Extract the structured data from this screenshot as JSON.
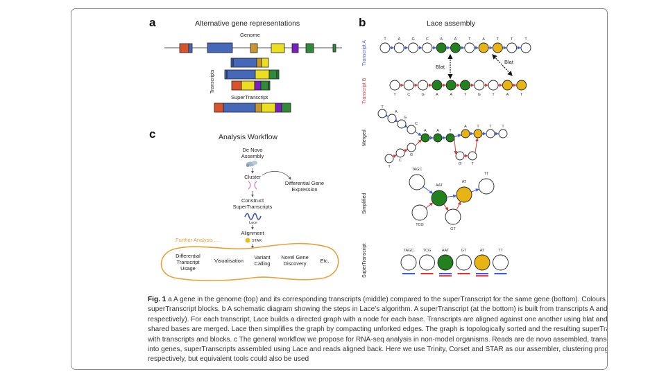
{
  "panels": {
    "a": {
      "letter": "a",
      "title": "Alternative gene representations",
      "genome_label": "Genome",
      "transcripts_label": "Transcripts",
      "supertranscript_label": "SuperTranscript"
    },
    "b": {
      "letter": "b",
      "title": "Lace assembly",
      "transcript_a_label": "Transcript A",
      "transcript_b_label": "Transcript B",
      "transcript_a_bases": [
        "T",
        "A",
        "G",
        "C",
        "A",
        "A",
        "T",
        "A",
        "T",
        "T",
        "T"
      ],
      "transcript_b_bases": [
        "T",
        "C",
        "G",
        "A",
        "A",
        "T",
        "G",
        "T",
        "A",
        "T"
      ],
      "blat_label": "Blat",
      "merged_label": "Merged",
      "merged_bases_top": [
        "T",
        "A",
        "G",
        "C",
        "A",
        "A",
        "T",
        "A",
        "T",
        "T",
        "T"
      ],
      "merged_bases_bottom": [
        "T",
        "C",
        "G",
        "G",
        "T"
      ],
      "simplified_label": "Simplified",
      "simplified_nodes": [
        "TAGC",
        "AAT",
        "AT",
        "TT",
        "TCG",
        "GT"
      ],
      "supertranscript_label": "SuperTranscript",
      "supertranscript_nodes": [
        "TAGC",
        "TCG",
        "AAT",
        "GT",
        "AT",
        "TT"
      ]
    },
    "c": {
      "letter": "c",
      "title": "Analysis Workflow",
      "step_denovo": "De Novo Assembly",
      "step_cluster": "Cluster",
      "step_dge": "Differential Gene Expression",
      "step_construct": "Construct SuperTranscripts",
      "lace_logo": "Lace",
      "step_alignment": "Alignment",
      "star_logo": "STAR",
      "further_label": "Further Analysis ....",
      "further_items": [
        "Differential Transcript Usage",
        "Visualisation",
        "Variant Calling",
        "Novel Gene Discovery",
        "Etc."
      ]
    }
  },
  "colors": {
    "orange_red": "#d9532b",
    "blue": "#4668b8",
    "tan": "#c9962e",
    "yellow": "#ecde21",
    "purple": "#7a1fbf",
    "green": "#2f8a3a",
    "node_green": "#23801e",
    "node_yellow": "#e8b414",
    "arrow_blue": "#3f5fd6",
    "arrow_red": "#d83a3a",
    "further_orange": "#e8a13a"
  },
  "caption": {
    "fig_label": "Fig. 1",
    "text": "a A gene in the genome (top) and its corresponding transcripts (middle) compared to the superTranscript for the same gene (bottom). Colours indicate superTranscript blocks. b A schematic diagram showing the steps in Lace's algorithm. A superTranscript (at the bottom) is built from transcripts A and B (blue and red, respectively). For each transcript, Lace builds a directed graph with a node for each base. Transcripts are aligned against one another using blat and the nodes of shared bases are merged. Lace then simplifies the graph by compacting unforked edges. The graph is topologically sorted and the resulting superTranscript annotated with transcripts and blocks. c The general workflow we propose for RNA-seq analysis in non-model organisms. Reads are de novo assembled, transcripts clustered into genes, superTranscripts assembled using Lace and reads aligned back. Here we use Trinity, Corset and STAR as our assembler, clustering program and aligner, respectively, but equivalent tools could also be used"
  }
}
